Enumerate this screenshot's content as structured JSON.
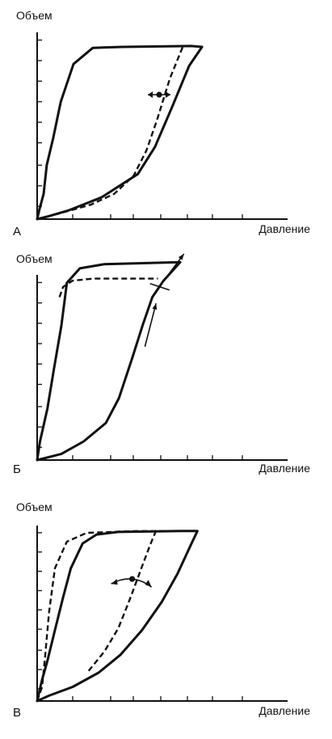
{
  "chart_data": [
    {
      "type": "line",
      "panel_label": "А",
      "xlabel": "Давление",
      "ylabel": "Объем",
      "xlim": [
        0,
        10
      ],
      "ylim": [
        0,
        10
      ],
      "grid": false,
      "series": [
        {
          "style": "solid",
          "points": [
            [
              0,
              0
            ],
            [
              0.5,
              0.15
            ],
            [
              1.5,
              0.5
            ],
            [
              3,
              1.2
            ],
            [
              4.7,
              2.5
            ],
            [
              5.5,
              4
            ],
            [
              6.3,
              6.2
            ],
            [
              7.1,
              8.5
            ],
            [
              7.7,
              9.55
            ],
            [
              7.2,
              9.6
            ],
            [
              4,
              9.55
            ],
            [
              2.6,
              9.5
            ],
            [
              1.7,
              8.6
            ],
            [
              1.1,
              6.5
            ],
            [
              0.75,
              4.5
            ],
            [
              0.45,
              3
            ],
            [
              0.3,
              1.4
            ],
            [
              0.1,
              0.5
            ],
            [
              0,
              0
            ]
          ]
        },
        {
          "style": "dashed",
          "points": [
            [
              0,
              0
            ],
            [
              1,
              0.3
            ],
            [
              2.5,
              0.8
            ],
            [
              3.6,
              1.4
            ],
            [
              4.5,
              2.4
            ],
            [
              5.1,
              3.8
            ],
            [
              5.6,
              5.5
            ],
            [
              6.2,
              7.8
            ],
            [
              6.8,
              9.55
            ]
          ]
        }
      ],
      "annotations": [
        {
          "kind": "double-arrow",
          "direction": "horizontal",
          "at": [
            5.7,
            6.9
          ]
        }
      ]
    },
    {
      "type": "line",
      "panel_label": "Б",
      "xlabel": "Давление",
      "ylabel": "Объем",
      "xlim": [
        0,
        10
      ],
      "ylim": [
        0,
        10
      ],
      "grid": false,
      "series": [
        {
          "style": "solid",
          "points": [
            [
              0,
              0
            ],
            [
              1.3,
              0.3
            ],
            [
              2.5,
              0.9
            ],
            [
              3.7,
              1.8
            ],
            [
              4.4,
              3
            ],
            [
              5.1,
              4.9
            ],
            [
              5.7,
              6.6
            ],
            [
              6.2,
              7.9
            ],
            [
              6.8,
              8.7
            ],
            [
              7.7,
              9.6
            ],
            [
              3.6,
              9.5
            ],
            [
              2.3,
              9.3
            ],
            [
              1.6,
              8.6
            ],
            [
              1.3,
              6.5
            ],
            [
              0.9,
              4.4
            ],
            [
              0.55,
              2.5
            ],
            [
              0.15,
              0.9
            ],
            [
              0,
              0
            ]
          ]
        },
        {
          "style": "dashed",
          "points": [
            [
              1.2,
              7.9
            ],
            [
              1.4,
              8.4
            ],
            [
              1.9,
              8.7
            ],
            [
              3,
              8.8
            ],
            [
              5.5,
              8.8
            ],
            [
              6.5,
              8.8
            ]
          ]
        }
      ],
      "annotations": [
        {
          "kind": "arrow",
          "from": [
            5.8,
            5.5
          ],
          "to": [
            6.4,
            7.6
          ]
        },
        {
          "kind": "arrow",
          "from": [
            6.9,
            8.8
          ],
          "to": [
            7.9,
            10.0
          ]
        },
        {
          "kind": "tick-mark",
          "at": [
            6.6,
            8.4
          ]
        }
      ]
    },
    {
      "type": "line",
      "panel_label": "В",
      "xlabel": "Давление",
      "ylabel": "Объем",
      "xlim": [
        0,
        10
      ],
      "ylim": [
        0,
        10
      ],
      "grid": false,
      "series": [
        {
          "style": "solid",
          "points": [
            [
              0,
              0
            ],
            [
              0.6,
              0.3
            ],
            [
              1.8,
              0.8
            ],
            [
              3.1,
              1.6
            ],
            [
              4.2,
              2.6
            ],
            [
              5.3,
              4
            ],
            [
              6.3,
              5.6
            ],
            [
              7.1,
              7.2
            ],
            [
              7.8,
              8.9
            ],
            [
              8.1,
              9.6
            ],
            [
              7.3,
              9.6
            ],
            [
              4.1,
              9.55
            ],
            [
              3,
              9.4
            ],
            [
              2.3,
              8.9
            ],
            [
              1.7,
              7.5
            ],
            [
              1.3,
              5.8
            ],
            [
              0.9,
              4
            ],
            [
              0.5,
              2.2
            ],
            [
              0.25,
              1.2
            ],
            [
              0,
              0
            ]
          ]
        },
        {
          "style": "dashed",
          "points": [
            [
              0,
              0
            ],
            [
              0.25,
              0.8
            ],
            [
              0.4,
              2.5
            ],
            [
              0.6,
              5
            ],
            [
              0.9,
              7.5
            ],
            [
              1.5,
              9
            ],
            [
              2.5,
              9.5
            ],
            [
              5,
              9.6
            ],
            [
              8.1,
              9.6
            ]
          ]
        },
        {
          "style": "dashed",
          "points": [
            [
              2.6,
              1.7
            ],
            [
              3.4,
              2.8
            ],
            [
              4.1,
              4.1
            ],
            [
              4.7,
              5.8
            ],
            [
              5.2,
              7.3
            ],
            [
              5.7,
              8.8
            ],
            [
              6,
              9.6
            ]
          ]
        }
      ],
      "annotations": [
        {
          "kind": "curved-double-arrow",
          "at": [
            4.8,
            6.8
          ]
        }
      ]
    }
  ]
}
